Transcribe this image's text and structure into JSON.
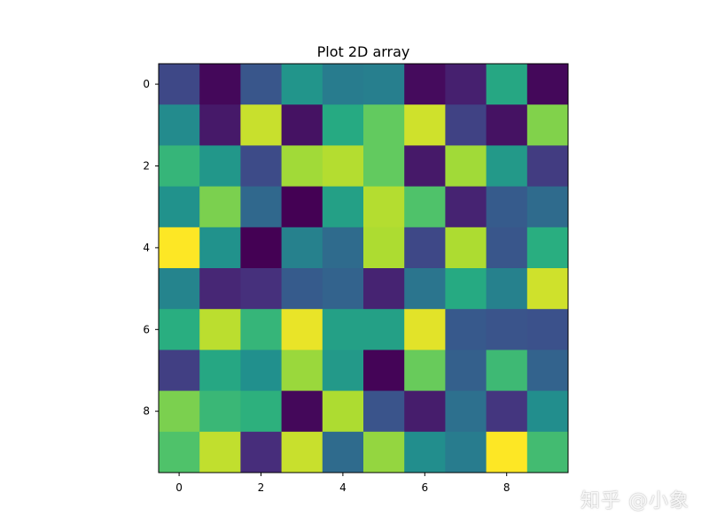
{
  "chart_data": {
    "type": "heatmap",
    "title": "Plot 2D array",
    "xlabel": "",
    "ylabel": "",
    "colormap": "viridis",
    "x_ticks": [
      "0",
      "2",
      "4",
      "6",
      "8"
    ],
    "y_ticks": [
      "0",
      "2",
      "4",
      "6",
      "8"
    ],
    "xlim": [
      -0.5,
      9.5
    ],
    "ylim": [
      9.5,
      -0.5
    ],
    "value_range": [
      0,
      1
    ],
    "values": [
      [
        0.22,
        0.02,
        0.27,
        0.52,
        0.42,
        0.43,
        0.03,
        0.09,
        0.6,
        0.02
      ],
      [
        0.48,
        0.07,
        0.92,
        0.05,
        0.61,
        0.76,
        0.93,
        0.2,
        0.05,
        0.81
      ],
      [
        0.66,
        0.53,
        0.23,
        0.86,
        0.89,
        0.76,
        0.07,
        0.86,
        0.54,
        0.18
      ],
      [
        0.51,
        0.8,
        0.34,
        0.0,
        0.57,
        0.89,
        0.72,
        0.1,
        0.29,
        0.35
      ],
      [
        1.0,
        0.51,
        0.0,
        0.44,
        0.35,
        0.88,
        0.22,
        0.88,
        0.27,
        0.63
      ],
      [
        0.45,
        0.11,
        0.14,
        0.29,
        0.32,
        0.1,
        0.39,
        0.61,
        0.44,
        0.93
      ],
      [
        0.63,
        0.9,
        0.66,
        0.97,
        0.57,
        0.57,
        0.96,
        0.28,
        0.26,
        0.25
      ],
      [
        0.19,
        0.6,
        0.5,
        0.85,
        0.54,
        0.01,
        0.77,
        0.31,
        0.68,
        0.32
      ],
      [
        0.8,
        0.67,
        0.64,
        0.02,
        0.88,
        0.26,
        0.08,
        0.37,
        0.16,
        0.49
      ],
      [
        0.72,
        0.91,
        0.13,
        0.92,
        0.35,
        0.84,
        0.49,
        0.42,
        1.0,
        0.69
      ]
    ]
  },
  "watermark": {
    "text": "知乎 @小象"
  }
}
